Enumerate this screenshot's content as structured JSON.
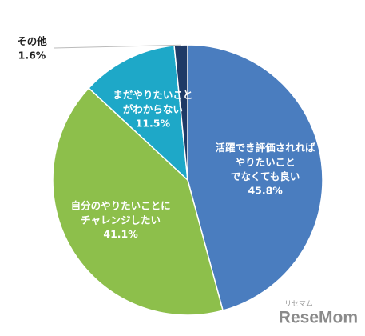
{
  "chart_data": {
    "type": "pie",
    "categories": [
      "活躍でき評価されれば\nやりたいこと\nでなくても良い",
      "自分のやりたいことに\nチャレンジしたい",
      "まだやりたいこと\nがわからない",
      "その他"
    ],
    "values": [
      45.8,
      41.1,
      11.5,
      1.6
    ],
    "value_labels": [
      "45.8%",
      "41.1%",
      "11.5%",
      "1.6%"
    ],
    "colors": [
      "#4a7dbf",
      "#8dbf4b",
      "#1ea8c8",
      "#1f3a66"
    ],
    "watermark": "ReseMom",
    "watermark_sub": "リセマム"
  }
}
